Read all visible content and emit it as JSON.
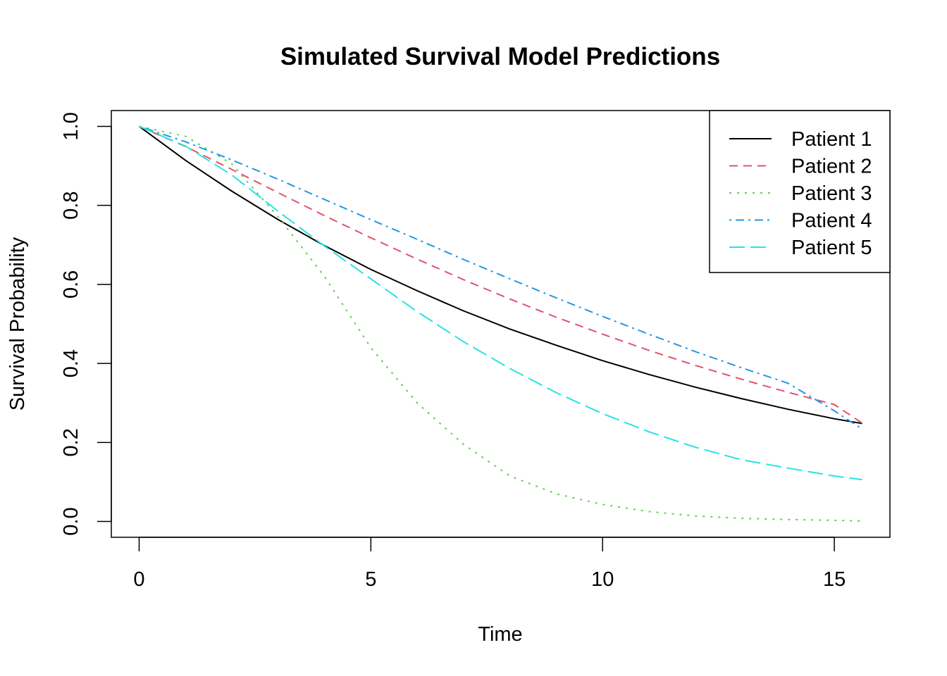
{
  "chart_data": {
    "type": "line",
    "title": "Simulated Survival Model Predictions",
    "xlabel": "Time",
    "ylabel": "Survival Probability",
    "xlim": [
      -0.6,
      16.2
    ],
    "ylim": [
      -0.04,
      1.04
    ],
    "x_ticks": [
      0,
      5,
      10,
      15
    ],
    "x_tick_labels": [
      "0",
      "5",
      "10",
      "15"
    ],
    "y_ticks": [
      0.0,
      0.2,
      0.4,
      0.6,
      0.8,
      1.0
    ],
    "y_tick_labels": [
      "0.0",
      "0.2",
      "0.4",
      "0.6",
      "0.8",
      "1.0"
    ],
    "grid": false,
    "legend_position": "top-right",
    "x": [
      0,
      1,
      2,
      3,
      4,
      5,
      6,
      7,
      8,
      9,
      10,
      11,
      12,
      13,
      14,
      15,
      15.6
    ],
    "series": [
      {
        "name": "Patient 1",
        "color": "#000000",
        "dash": "solid",
        "values": [
          1.0,
          0.914,
          0.836,
          0.764,
          0.698,
          0.638,
          0.584,
          0.533,
          0.487,
          0.446,
          0.407,
          0.372,
          0.34,
          0.311,
          0.284,
          0.26,
          0.248
        ]
      },
      {
        "name": "Patient 2",
        "color": "#DF536B",
        "dash": "dashed",
        "values": [
          1.0,
          0.949,
          0.891,
          0.832,
          0.774,
          0.718,
          0.664,
          0.612,
          0.563,
          0.517,
          0.474,
          0.433,
          0.395,
          0.36,
          0.327,
          0.296,
          0.249
        ]
      },
      {
        "name": "Patient 3",
        "color": "#61D04F",
        "dash": "dotted",
        "values": [
          1.0,
          0.975,
          0.905,
          0.771,
          0.62,
          0.44,
          0.3,
          0.195,
          0.115,
          0.07,
          0.043,
          0.025,
          0.014,
          0.008,
          0.005,
          0.003,
          0.001
        ]
      },
      {
        "name": "Patient 4",
        "color": "#2297E6",
        "dash": "dotdash",
        "values": [
          1.0,
          0.961,
          0.915,
          0.866,
          0.815,
          0.764,
          0.714,
          0.663,
          0.614,
          0.566,
          0.519,
          0.474,
          0.43,
          0.389,
          0.35,
          0.28,
          0.234
        ]
      },
      {
        "name": "Patient 5",
        "color": "#28E2E5",
        "dash": "longdash",
        "values": [
          1.0,
          0.95,
          0.877,
          0.785,
          0.697,
          0.614,
          0.531,
          0.455,
          0.387,
          0.326,
          0.273,
          0.227,
          0.188,
          0.156,
          0.135,
          0.115,
          0.106
        ]
      }
    ]
  }
}
